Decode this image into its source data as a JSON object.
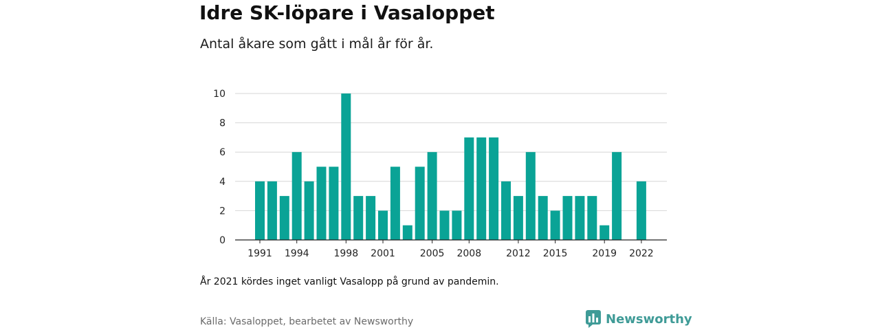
{
  "title": "Idre SK-löpare i Vasaloppet",
  "subtitle": "Antal åkare som gått i mål år för år.",
  "footnote": "År 2021 kördes inget vanligt Vasalopp på grund av pandemin.",
  "source": "Källa: Vasaloppet, bearbetet av Newsworthy",
  "brand": {
    "name": "Newsworthy",
    "icon": "bar-chart-logo-icon",
    "color": "#3f9b97"
  },
  "chart_data": {
    "type": "bar",
    "title": "Idre SK-löpare i Vasaloppet",
    "subtitle": "Antal åkare som gått i mål år för år.",
    "color": "#0aa396",
    "categories": [
      1991,
      1992,
      1993,
      1994,
      1995,
      1996,
      1997,
      1998,
      1999,
      2000,
      2001,
      2002,
      2003,
      2004,
      2005,
      2006,
      2007,
      2008,
      2009,
      2010,
      2011,
      2012,
      2013,
      2014,
      2015,
      2016,
      2017,
      2018,
      2019,
      2020,
      2021,
      2022
    ],
    "values": [
      4,
      4,
      3,
      6,
      4,
      5,
      5,
      10,
      3,
      3,
      2,
      5,
      1,
      5,
      6,
      2,
      2,
      7,
      7,
      7,
      4,
      3,
      6,
      3,
      2,
      3,
      3,
      3,
      1,
      6,
      null,
      4
    ],
    "x_tick_labels": [
      "1991",
      "1994",
      "1998",
      "2001",
      "2005",
      "2008",
      "2012",
      "2015",
      "2019",
      "2022"
    ],
    "y_ticks": [
      0,
      2,
      4,
      6,
      8,
      10
    ],
    "ylim": [
      0,
      10
    ],
    "grid": true,
    "legend": "none"
  }
}
